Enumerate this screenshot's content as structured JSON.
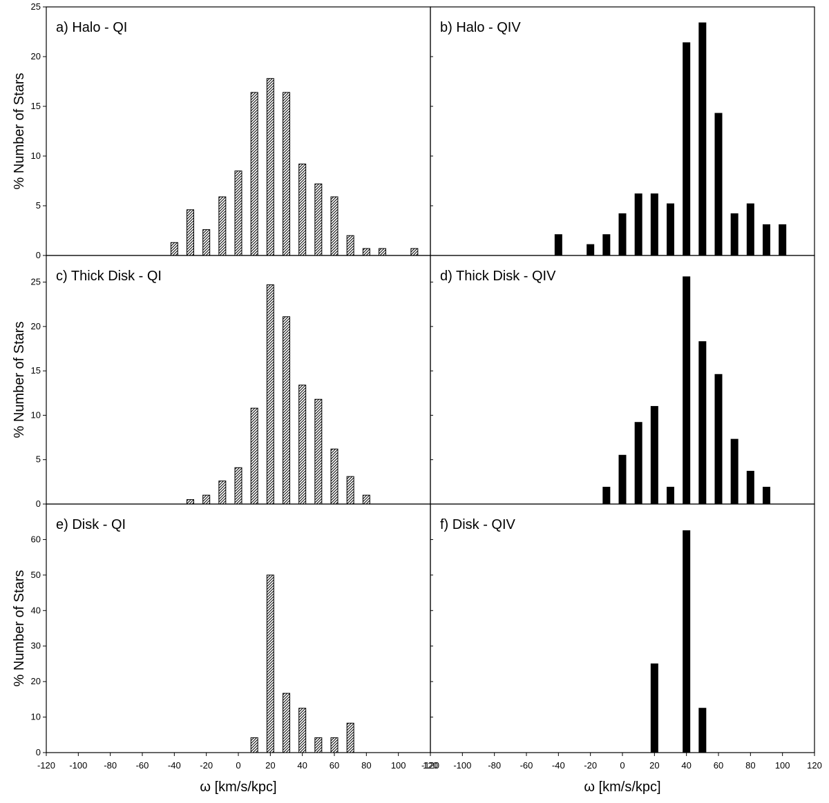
{
  "chart_data": [
    {
      "type": "bar",
      "panel": "a",
      "title": "a) Halo  - QI",
      "fill": "hatched",
      "ylabel": "% Number of Stars",
      "xlabel": "",
      "ylim": [
        0,
        25
      ],
      "yticks": [
        "0",
        "5",
        "10",
        "15",
        "20",
        "25"
      ],
      "xlim": [
        -120,
        120
      ],
      "x": [
        -40,
        -30,
        -20,
        -10,
        0,
        10,
        20,
        30,
        40,
        50,
        60,
        70,
        80,
        90,
        110
      ],
      "values": [
        1.3,
        4.6,
        2.6,
        5.9,
        8.5,
        16.4,
        17.8,
        16.4,
        9.2,
        7.2,
        5.9,
        2.0,
        0.7,
        0.7,
        0.7
      ]
    },
    {
      "type": "bar",
      "panel": "b",
      "title": "b) Halo  - QIV",
      "fill": "solid",
      "ylabel": "",
      "xlabel": "",
      "ylim": [
        0,
        25
      ],
      "yticks": [],
      "xlim": [
        -120,
        120
      ],
      "x": [
        -40,
        -20,
        -10,
        0,
        10,
        20,
        30,
        40,
        50,
        60,
        70,
        80,
        90,
        100
      ],
      "values": [
        2.1,
        1.1,
        2.1,
        4.2,
        6.2,
        6.2,
        5.2,
        21.4,
        23.4,
        14.3,
        4.2,
        5.2,
        3.1,
        3.1
      ]
    },
    {
      "type": "bar",
      "panel": "c",
      "title": "c) Thick Disk  - QI",
      "fill": "hatched",
      "ylabel": "% Number of Stars",
      "xlabel": "",
      "ylim": [
        0,
        28
      ],
      "yticks": [
        "0",
        "5",
        "10",
        "15",
        "20",
        "25"
      ],
      "xlim": [
        -120,
        120
      ],
      "x": [
        -30,
        -20,
        -10,
        0,
        10,
        20,
        30,
        40,
        50,
        60,
        70,
        80
      ],
      "values": [
        0.5,
        1.0,
        2.6,
        4.1,
        10.8,
        24.7,
        21.1,
        13.4,
        11.8,
        6.2,
        3.1,
        1.0
      ]
    },
    {
      "type": "bar",
      "panel": "d",
      "title": "d) Thick Disk  - QIV",
      "fill": "solid",
      "ylabel": "",
      "xlabel": "",
      "ylim": [
        0,
        28
      ],
      "yticks": [],
      "xlim": [
        -120,
        120
      ],
      "x": [
        -10,
        0,
        10,
        20,
        30,
        40,
        50,
        60,
        70,
        80,
        90
      ],
      "values": [
        1.9,
        5.5,
        9.2,
        11.0,
        1.9,
        25.6,
        18.3,
        14.6,
        7.3,
        3.7,
        1.9
      ]
    },
    {
      "type": "bar",
      "panel": "e",
      "title": "e) Disk  - QI",
      "fill": "hatched",
      "ylabel": "% Number of Stars",
      "xlabel": "ω [km/s/kpc]",
      "ylim": [
        0,
        70
      ],
      "yticks": [
        "0",
        "10",
        "20",
        "30",
        "40",
        "50",
        "60"
      ],
      "xlim": [
        -120,
        120
      ],
      "x": [
        10,
        20,
        30,
        40,
        50,
        60,
        70
      ],
      "values": [
        4.2,
        50.0,
        16.7,
        12.5,
        4.2,
        4.2,
        8.3
      ]
    },
    {
      "type": "bar",
      "panel": "f",
      "title": "f) Disk  - QIV",
      "fill": "solid",
      "ylabel": "",
      "xlabel": "ω [km/s/kpc]",
      "ylim": [
        0,
        70
      ],
      "yticks": [],
      "xlim": [
        -120,
        120
      ],
      "x": [
        20,
        40,
        50
      ],
      "values": [
        25.0,
        62.5,
        12.5
      ]
    }
  ],
  "xticks": [
    "-120",
    "-100",
    "-80",
    "-60",
    "-40",
    "-20",
    "0",
    "20",
    "40",
    "60",
    "80",
    "100",
    "120"
  ],
  "colors": {
    "bar": "#000000",
    "frame": "#000000",
    "background": "#ffffff"
  }
}
